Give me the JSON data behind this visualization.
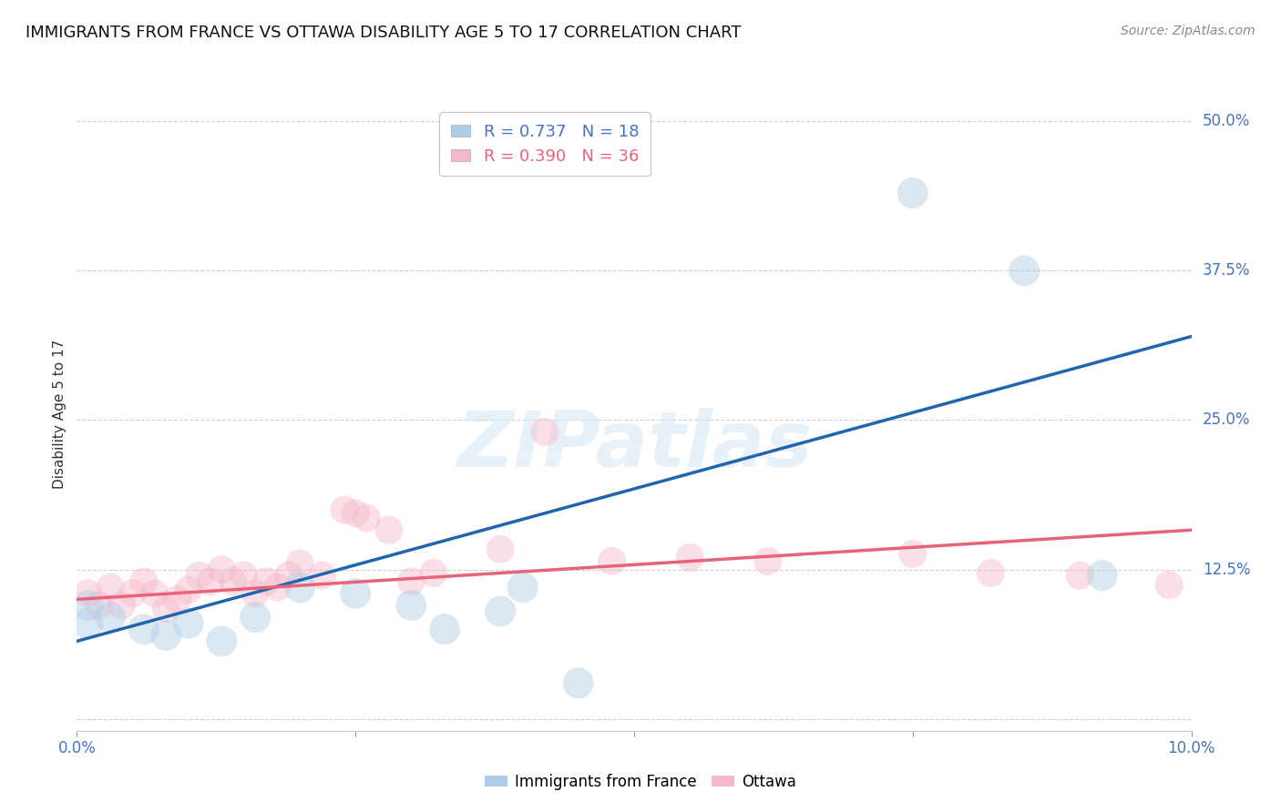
{
  "title": "IMMIGRANTS FROM FRANCE VS OTTAWA DISABILITY AGE 5 TO 17 CORRELATION CHART",
  "source": "Source: ZipAtlas.com",
  "xlim": [
    0.0,
    0.1
  ],
  "ylim": [
    -0.01,
    0.52
  ],
  "ylabel": "Disability Age 5 to 17",
  "watermark": "ZIPatlas",
  "blue_scatter_x": [
    0.001,
    0.001,
    0.003,
    0.006,
    0.008,
    0.01,
    0.013,
    0.016,
    0.02,
    0.025,
    0.03,
    0.033,
    0.038,
    0.04,
    0.045,
    0.075,
    0.085,
    0.092
  ],
  "blue_scatter_y": [
    0.095,
    0.08,
    0.085,
    0.075,
    0.07,
    0.08,
    0.065,
    0.085,
    0.11,
    0.105,
    0.095,
    0.075,
    0.09,
    0.11,
    0.03,
    0.44,
    0.375,
    0.12
  ],
  "pink_scatter_x": [
    0.001,
    0.002,
    0.003,
    0.004,
    0.005,
    0.006,
    0.007,
    0.008,
    0.009,
    0.01,
    0.011,
    0.012,
    0.013,
    0.014,
    0.015,
    0.016,
    0.017,
    0.018,
    0.019,
    0.02,
    0.022,
    0.024,
    0.025,
    0.026,
    0.028,
    0.03,
    0.032,
    0.038,
    0.042,
    0.048,
    0.055,
    0.062,
    0.075,
    0.082,
    0.09,
    0.098
  ],
  "pink_scatter_y": [
    0.105,
    0.095,
    0.11,
    0.095,
    0.105,
    0.115,
    0.105,
    0.092,
    0.1,
    0.108,
    0.12,
    0.115,
    0.125,
    0.115,
    0.12,
    0.105,
    0.115,
    0.11,
    0.12,
    0.13,
    0.12,
    0.175,
    0.172,
    0.168,
    0.158,
    0.115,
    0.122,
    0.142,
    0.24,
    0.132,
    0.135,
    0.132,
    0.138,
    0.122,
    0.12,
    0.112
  ],
  "blue_line_x": [
    0.0,
    0.1
  ],
  "blue_line_y": [
    0.065,
    0.32
  ],
  "pink_line_x": [
    0.0,
    0.1
  ],
  "pink_line_y": [
    0.1,
    0.158
  ],
  "scatter_size_blue": 600,
  "scatter_size_pink": 500,
  "scatter_alpha": 0.45,
  "line_color_blue": "#2166ac",
  "line_color_pink": "#e8637a",
  "scatter_color_blue": "#aecde8",
  "scatter_color_pink": "#f4b8c8",
  "grid_color": "#d0d0d0",
  "ylabel_ticks": [
    0.0,
    0.125,
    0.25,
    0.375,
    0.5
  ],
  "ylabel_tick_labels": [
    "",
    "12.5%",
    "25.0%",
    "37.5%",
    "50.0%"
  ],
  "xtick_positions": [
    0.0,
    0.025,
    0.05,
    0.075,
    0.1
  ],
  "xtick_labels": [
    "0.0%",
    "",
    "",
    "",
    "10.0%"
  ],
  "axis_tick_color": "#4472c4",
  "title_fontsize": 13,
  "background_color": "#ffffff",
  "legend_label_blue": "R = 0.737   N = 18",
  "legend_label_pink": "R = 0.390   N = 36",
  "legend_color_blue": "#4472c4",
  "legend_color_pink": "#e8637a",
  "bottom_label_blue": "Immigrants from France",
  "bottom_label_pink": "Ottawa"
}
